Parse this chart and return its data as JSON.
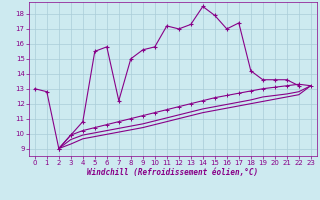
{
  "background_color": "#cdeaf0",
  "grid_color": "#aacdd8",
  "line_color": "#880088",
  "xlim": [
    -0.5,
    23.5
  ],
  "ylim": [
    8.5,
    18.8
  ],
  "xticks": [
    0,
    1,
    2,
    3,
    4,
    5,
    6,
    7,
    8,
    9,
    10,
    11,
    12,
    13,
    14,
    15,
    16,
    17,
    18,
    19,
    20,
    21,
    22,
    23
  ],
  "yticks": [
    9,
    10,
    11,
    12,
    13,
    14,
    15,
    16,
    17,
    18
  ],
  "xlabel": "Windchill (Refroidissement éolien,°C)",
  "line1_x": [
    0,
    1,
    2,
    3,
    4,
    5,
    6,
    7,
    8,
    9,
    10,
    11,
    12,
    13,
    14,
    15,
    16,
    17,
    18,
    19,
    20,
    21,
    22
  ],
  "line1_y": [
    13.0,
    12.8,
    9.0,
    9.9,
    10.8,
    15.5,
    15.8,
    12.2,
    15.0,
    15.6,
    15.8,
    17.2,
    17.0,
    17.3,
    18.5,
    17.9,
    17.0,
    17.4,
    14.2,
    13.6,
    13.6,
    13.6,
    13.2
  ],
  "line2_x": [
    2,
    3,
    4,
    5,
    6,
    7,
    8,
    9,
    10,
    11,
    12,
    13,
    14,
    15,
    16,
    17,
    18,
    19,
    20,
    21,
    22,
    23
  ],
  "line2_y": [
    9.0,
    9.9,
    10.2,
    10.4,
    10.6,
    10.8,
    11.0,
    11.2,
    11.4,
    11.6,
    11.8,
    12.0,
    12.2,
    12.4,
    12.55,
    12.7,
    12.85,
    13.0,
    13.1,
    13.2,
    13.3,
    13.2
  ],
  "line3_x": [
    2,
    3,
    4,
    5,
    6,
    7,
    8,
    9,
    10,
    11,
    12,
    13,
    14,
    15,
    16,
    17,
    18,
    19,
    20,
    21,
    22,
    23
  ],
  "line3_y": [
    9.0,
    9.6,
    9.9,
    10.05,
    10.2,
    10.35,
    10.5,
    10.65,
    10.85,
    11.05,
    11.25,
    11.45,
    11.65,
    11.8,
    11.95,
    12.1,
    12.25,
    12.45,
    12.55,
    12.65,
    12.8,
    13.2
  ],
  "line4_x": [
    2,
    3,
    4,
    5,
    6,
    7,
    8,
    9,
    10,
    11,
    12,
    13,
    14,
    15,
    16,
    17,
    18,
    19,
    20,
    21,
    22,
    23
  ],
  "line4_y": [
    9.0,
    9.3,
    9.65,
    9.8,
    9.95,
    10.1,
    10.25,
    10.4,
    10.6,
    10.8,
    11.0,
    11.2,
    11.4,
    11.55,
    11.7,
    11.85,
    12.0,
    12.15,
    12.3,
    12.45,
    12.6,
    13.2
  ]
}
